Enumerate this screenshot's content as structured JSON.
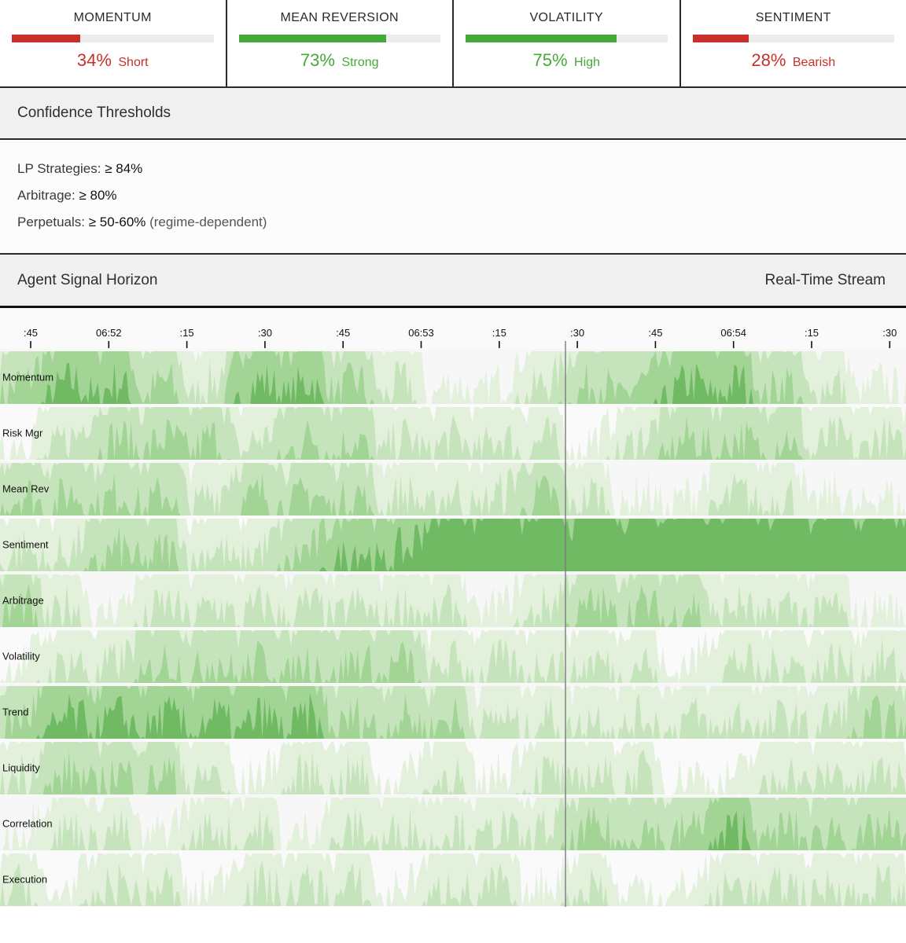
{
  "metrics": [
    {
      "title": "MOMENTUM",
      "pct": "34%",
      "word": "Short",
      "value": 0.34,
      "color": "#c9302c"
    },
    {
      "title": "MEAN REVERSION",
      "pct": "73%",
      "word": "Strong",
      "value": 0.73,
      "color": "#45a93a"
    },
    {
      "title": "VOLATILITY",
      "pct": "75%",
      "word": "High",
      "value": 0.75,
      "color": "#45a93a"
    },
    {
      "title": "SENTIMENT",
      "pct": "28%",
      "word": "Bearish",
      "value": 0.28,
      "color": "#c9302c"
    }
  ],
  "thresholds": {
    "title": "Confidence Thresholds",
    "items": [
      {
        "label": "LP Strategies: ",
        "value": "≥ 84%",
        "note": ""
      },
      {
        "label": "Arbitrage: ",
        "value": "≥ 80%",
        "note": ""
      },
      {
        "label": "Perpetuals: ",
        "value": "≥ 50-60%",
        "note": " (regime-dependent)"
      }
    ]
  },
  "horizon": {
    "title": "Agent Signal Horizon",
    "right_label": "Real-Time Stream"
  },
  "colors": {
    "band1": "#e2f0dc",
    "band2": "#c5e4bb",
    "band3": "#a2d495",
    "band4": "#6fba62",
    "band5": "#4c9e44",
    "loss": "#c9302c",
    "gain": "#45a93a"
  },
  "chart_data": {
    "type": "area",
    "title": "Agent Signal Horizon",
    "x_ticks": [
      ":45",
      "06:52",
      ":15",
      ":30",
      ":45",
      "06:53",
      ":15",
      ":30",
      ":45",
      "06:54",
      ":15",
      ":30"
    ],
    "rows": [
      {
        "name": "Momentum",
        "level": [
          2,
          3,
          3,
          2,
          1,
          3,
          3,
          2,
          1,
          0,
          0,
          1,
          2,
          2,
          3,
          3,
          2,
          1,
          0
        ],
        "spikes": 1
      },
      {
        "name": "Risk Mgr",
        "level": [
          0,
          1,
          2,
          2,
          2,
          1,
          2,
          2,
          1,
          1,
          1,
          1,
          0,
          1,
          2,
          2,
          2,
          1,
          1
        ],
        "spikes": 1
      },
      {
        "name": "Mean Rev",
        "level": [
          2,
          2,
          2,
          2,
          1,
          2,
          2,
          2,
          1,
          1,
          1,
          2,
          1,
          0,
          0,
          1,
          1,
          0,
          0
        ],
        "spikes": 1
      },
      {
        "name": "Sentiment",
        "level": [
          1,
          1,
          2,
          2,
          1,
          1,
          2,
          3,
          3,
          4,
          4,
          4,
          4,
          4,
          4,
          4,
          4,
          4,
          4
        ],
        "spikes": 2
      },
      {
        "name": "Arbitrage",
        "level": [
          2,
          1,
          0,
          1,
          1,
          1,
          1,
          1,
          1,
          1,
          0,
          1,
          2,
          2,
          2,
          1,
          1,
          1,
          0
        ],
        "spikes": 1
      },
      {
        "name": "Volatility",
        "level": [
          0,
          1,
          1,
          2,
          2,
          2,
          2,
          2,
          2,
          1,
          1,
          1,
          1,
          1,
          0,
          1,
          1,
          1,
          1
        ],
        "spikes": 1
      },
      {
        "name": "Trend",
        "level": [
          2,
          3,
          3,
          3,
          3,
          3,
          3,
          2,
          2,
          2,
          1,
          1,
          1,
          1,
          1,
          1,
          1,
          1,
          2
        ],
        "spikes": 1
      },
      {
        "name": "Liquidity",
        "level": [
          1,
          2,
          2,
          2,
          1,
          0,
          1,
          1,
          0,
          1,
          0,
          1,
          1,
          1,
          0,
          0,
          1,
          1,
          1
        ],
        "spikes": 1
      },
      {
        "name": "Correlation",
        "level": [
          0,
          1,
          1,
          0,
          1,
          1,
          0,
          1,
          1,
          1,
          1,
          1,
          2,
          2,
          2,
          3,
          2,
          2,
          2
        ],
        "spikes": 1
      },
      {
        "name": "Execution",
        "level": [
          1,
          0,
          1,
          1,
          0,
          1,
          1,
          1,
          0,
          1,
          1,
          0,
          1,
          0,
          0,
          1,
          1,
          1,
          1
        ],
        "spikes": 0
      }
    ]
  }
}
